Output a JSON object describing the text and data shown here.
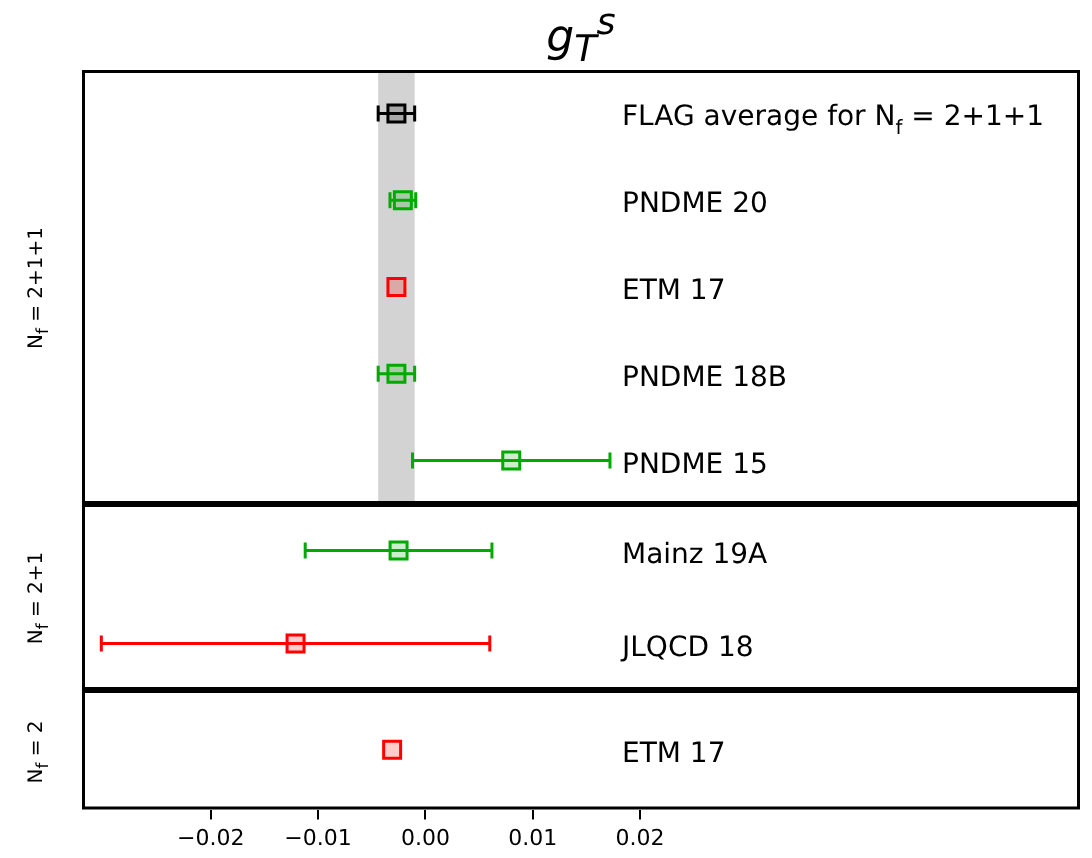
{
  "chart_data": [
    {
      "type": "scatter",
      "orientation": "horizontal",
      "title": "g$_{T}$$^{s}$",
      "ylabel": "N$_{f}$ = 2+1+1",
      "categories": [
        "FLAG average for N$_{f}$ = 2+1+1",
        "PNDME 20",
        "ETM 17",
        "PNDME 18B",
        "PNDME 15"
      ],
      "values": [
        -0.0027,
        -0.0021,
        -0.0027,
        -0.0027,
        0.008
      ],
      "errors": [
        0.0017,
        0.0012,
        null,
        0.0017,
        0.0092
      ],
      "colors": [
        "#000000",
        "#00aa00",
        "#ff0000",
        "#00aa00",
        "#00aa00"
      ],
      "marker": "square",
      "xlim": [
        -0.032,
        0.061
      ],
      "tick_labels": false,
      "bands": [
        {
          "axis": "x",
          "from": -0.0044,
          "to": -0.001,
          "color": "#d3d3d3"
        }
      ]
    },
    {
      "type": "scatter",
      "orientation": "horizontal",
      "ylabel": "N$_{f}$ = 2+1",
      "categories": [
        "Mainz 19A",
        "JLQCD 18"
      ],
      "values": [
        -0.0025,
        -0.0121
      ],
      "errors": [
        0.0087,
        0.0181
      ],
      "colors": [
        "#00aa00",
        "#ff0000"
      ],
      "marker": "square",
      "xlim": [
        -0.032,
        0.061
      ],
      "tick_labels": false
    },
    {
      "type": "scatter",
      "orientation": "horizontal",
      "ylabel": "N$_{f}$ = 2",
      "categories": [
        "ETM 17"
      ],
      "values": [
        -0.0031
      ],
      "colors": [
        "#ff0000"
      ],
      "marker": "square",
      "xlim": [
        -0.032,
        0.061
      ],
      "xticks": [
        {
          "value": -0.02,
          "label": "−0.02"
        },
        {
          "value": -0.01,
          "label": "−0.01"
        },
        {
          "value": 0,
          "label": "0.00"
        },
        {
          "value": 0.01,
          "label": "0.01"
        },
        {
          "value": 0.02,
          "label": "0.02"
        }
      ],
      "tick_labels": "x"
    }
  ]
}
